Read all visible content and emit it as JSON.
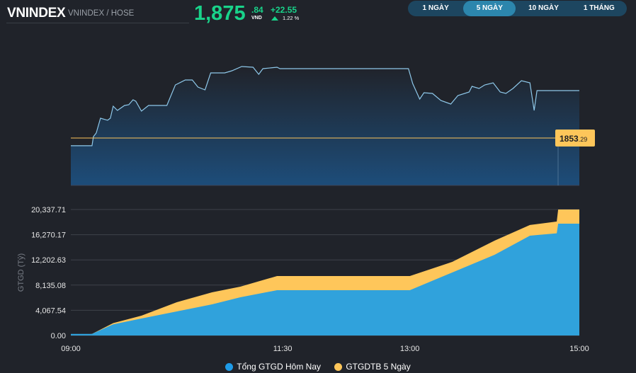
{
  "header": {
    "title": "VNINDEX",
    "subtitle": "VNINDEX / HOSE",
    "price_int": "1,875",
    "price_dec": ".84",
    "unit": "VND",
    "change": "+22.55",
    "change_pct": "1.22 %"
  },
  "tabs": [
    {
      "label": "1 NGÀY",
      "active": false
    },
    {
      "label": "5 NGÀY",
      "active": true
    },
    {
      "label": "10 NGÀY",
      "active": false
    },
    {
      "label": "1 THÁNG",
      "active": false
    }
  ],
  "colors": {
    "up": "#19d38a",
    "line": "#8ec8ea",
    "ref": "#fec65a",
    "today": "#30a2dc",
    "avg5": "#fec65a",
    "bg": "#20232a"
  },
  "chart_data": [
    {
      "type": "line",
      "reference": {
        "value": 1853.29,
        "label_int": "1853",
        "label_dec": ".29"
      },
      "ylim": [
        1830.7,
        1903.8
      ],
      "xlim": [
        "09:00",
        "15:00"
      ],
      "points": [
        [
          "09:00",
          1849.59
        ],
        [
          "09:15",
          1849.59
        ],
        [
          "09:16",
          1853.96
        ],
        [
          "09:18",
          1855.65
        ],
        [
          "09:21",
          1862.71
        ],
        [
          "09:26",
          1861.71
        ],
        [
          "09:28",
          1862.71
        ],
        [
          "09:30",
          1868.44
        ],
        [
          "09:33",
          1866.42
        ],
        [
          "09:38",
          1868.77
        ],
        [
          "09:41",
          1869.11
        ],
        [
          "09:44",
          1871.47
        ],
        [
          "09:46",
          1870.79
        ],
        [
          "09:50",
          1866.08
        ],
        [
          "09:55",
          1868.77
        ],
        [
          "10:08",
          1868.77
        ],
        [
          "10:14",
          1878.54
        ],
        [
          "10:21",
          1880.89
        ],
        [
          "10:26",
          1880.89
        ],
        [
          "10:30",
          1877.53
        ],
        [
          "10:35",
          1876.18
        ],
        [
          "10:39",
          1884.26
        ],
        [
          "10:49",
          1884.26
        ],
        [
          "10:54",
          1885.27
        ],
        [
          "11:01",
          1887.29
        ],
        [
          "11:09",
          1886.95
        ],
        [
          "11:13",
          1883.58
        ],
        [
          "11:16",
          1886.28
        ],
        [
          "11:26",
          1886.95
        ],
        [
          "11:28",
          1886.28
        ],
        [
          "12:59",
          1886.28
        ],
        [
          "13:02",
          1879.21
        ],
        [
          "13:07",
          1871.8
        ],
        [
          "13:10",
          1874.83
        ],
        [
          "13:16",
          1874.5
        ],
        [
          "13:22",
          1871.13
        ],
        [
          "13:29",
          1869.45
        ],
        [
          "13:34",
          1873.49
        ],
        [
          "13:42",
          1875.17
        ],
        [
          "13:44",
          1877.86
        ],
        [
          "13:49",
          1876.85
        ],
        [
          "13:53",
          1878.54
        ],
        [
          "13:59",
          1879.54
        ],
        [
          "14:04",
          1875.17
        ],
        [
          "14:08",
          1874.5
        ],
        [
          "14:13",
          1876.85
        ],
        [
          "14:19",
          1880.55
        ],
        [
          "14:25",
          1879.54
        ],
        [
          "14:28",
          1866.42
        ],
        [
          "14:30",
          1875.84
        ],
        [
          "15:00",
          1875.84
        ]
      ]
    },
    {
      "type": "area",
      "ylabel": "GTGD (Tỷ)",
      "ylim": [
        0,
        20337.71
      ],
      "grid": true,
      "legend": "bottom",
      "yticks": [
        "0.00",
        "4,067.54",
        "8,135.08",
        "12,202.63",
        "16,270.17",
        "20,337.71"
      ],
      "xticks": [
        "09:00",
        "11:30",
        "13:00",
        "15:00"
      ],
      "x": [
        "09:00",
        "09:15",
        "09:30",
        "09:50",
        "10:15",
        "10:40",
        "11:00",
        "11:26",
        "11:30",
        "13:00",
        "13:30",
        "14:00",
        "14:25",
        "14:44",
        "14:45",
        "15:00"
      ],
      "series": [
        {
          "name": "Tổng GTGD Hôm Nay",
          "values": [
            250,
            250,
            1800,
            2740,
            3885,
            5030,
            6170,
            7310,
            7310,
            7310,
            10170,
            13025,
            16110,
            16500,
            18050,
            18050
          ]
        },
        {
          "name": "GTGDTB 5 Ngày",
          "values": [
            0,
            250,
            2000,
            3200,
            5370,
            6970,
            7880,
            9600,
            9600,
            9600,
            11880,
            15310,
            17830,
            18400,
            20337.71,
            20337.71
          ]
        }
      ]
    }
  ]
}
